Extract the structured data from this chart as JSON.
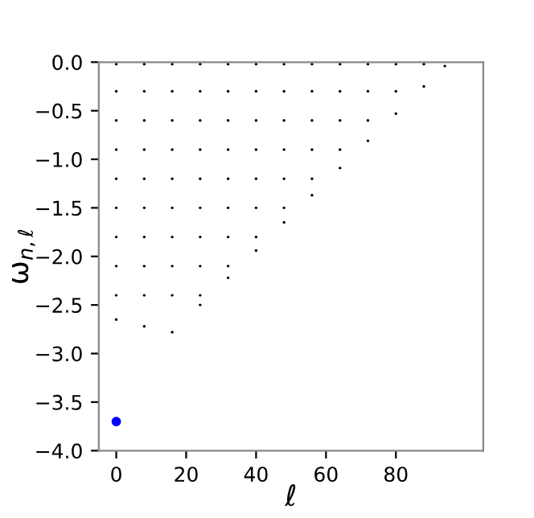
{
  "chart_data": {
    "type": "scatter",
    "xlabel": "ℓ",
    "ylabel": "ω$_{n,ℓ}$",
    "xlim": [
      -5,
      105
    ],
    "ylim": [
      -4.0,
      0.0
    ],
    "xticks": [
      0,
      20,
      40,
      60,
      80
    ],
    "yticks": [
      {
        "value": -4.0,
        "label": "−4.0"
      },
      {
        "value": -3.5,
        "label": "−3.5"
      },
      {
        "value": -3.0,
        "label": "−3.0"
      },
      {
        "value": -2.5,
        "label": "−2.5"
      },
      {
        "value": -2.0,
        "label": "−2.0"
      },
      {
        "value": -1.5,
        "label": "−1.5"
      },
      {
        "value": -1.0,
        "label": "−1.0"
      },
      {
        "value": -0.5,
        "label": "−0.5"
      },
      {
        "value": 0.0,
        "label": "0.0"
      }
    ],
    "grid": false,
    "marker": "circle",
    "series": [
      {
        "color": "#000000",
        "x": [
          0,
          0,
          0,
          0,
          0,
          0,
          0,
          0,
          0,
          0,
          8,
          8,
          8,
          8,
          8,
          8,
          8,
          8,
          8,
          8,
          16,
          16,
          16,
          16,
          16,
          16,
          16,
          16,
          16,
          16,
          24,
          24,
          24,
          24,
          24,
          24,
          24,
          24,
          24,
          24,
          32,
          32,
          32,
          32,
          32,
          32,
          32,
          32,
          32,
          40,
          40,
          40,
          40,
          40,
          40,
          40,
          40,
          48,
          48,
          48,
          48,
          48,
          48,
          48,
          56,
          56,
          56,
          56,
          56,
          56,
          64,
          64,
          64,
          64,
          64,
          72,
          72,
          72,
          72,
          80,
          80,
          80,
          88,
          88,
          94
        ],
        "values": [
          -0.02,
          -0.3,
          -0.6,
          -0.9,
          -1.2,
          -1.5,
          -1.8,
          -2.1,
          -2.4,
          -2.65,
          -0.02,
          -0.3,
          -0.6,
          -0.9,
          -1.2,
          -1.5,
          -1.8,
          -2.1,
          -2.4,
          -2.72,
          -0.02,
          -0.3,
          -0.6,
          -0.9,
          -1.2,
          -1.5,
          -1.8,
          -2.1,
          -2.4,
          -2.78,
          -0.02,
          -0.3,
          -0.6,
          -0.9,
          -1.2,
          -1.5,
          -1.8,
          -2.1,
          -2.4,
          -2.5,
          -0.02,
          -0.3,
          -0.6,
          -0.9,
          -1.2,
          -1.5,
          -1.8,
          -2.1,
          -2.22,
          -0.02,
          -0.3,
          -0.6,
          -0.9,
          -1.2,
          -1.5,
          -1.8,
          -1.94,
          -0.02,
          -0.3,
          -0.6,
          -0.9,
          -1.2,
          -1.5,
          -1.65,
          -0.02,
          -0.3,
          -0.6,
          -0.9,
          -1.2,
          -1.37,
          -0.02,
          -0.3,
          -0.6,
          -0.9,
          -1.09,
          -0.02,
          -0.3,
          -0.6,
          -0.81,
          -0.02,
          -0.3,
          -0.53,
          -0.02,
          -0.25,
          -0.04
        ]
      },
      {
        "color": "#0000ff",
        "x": [
          0
        ],
        "values": [
          -3.7
        ]
      }
    ]
  }
}
